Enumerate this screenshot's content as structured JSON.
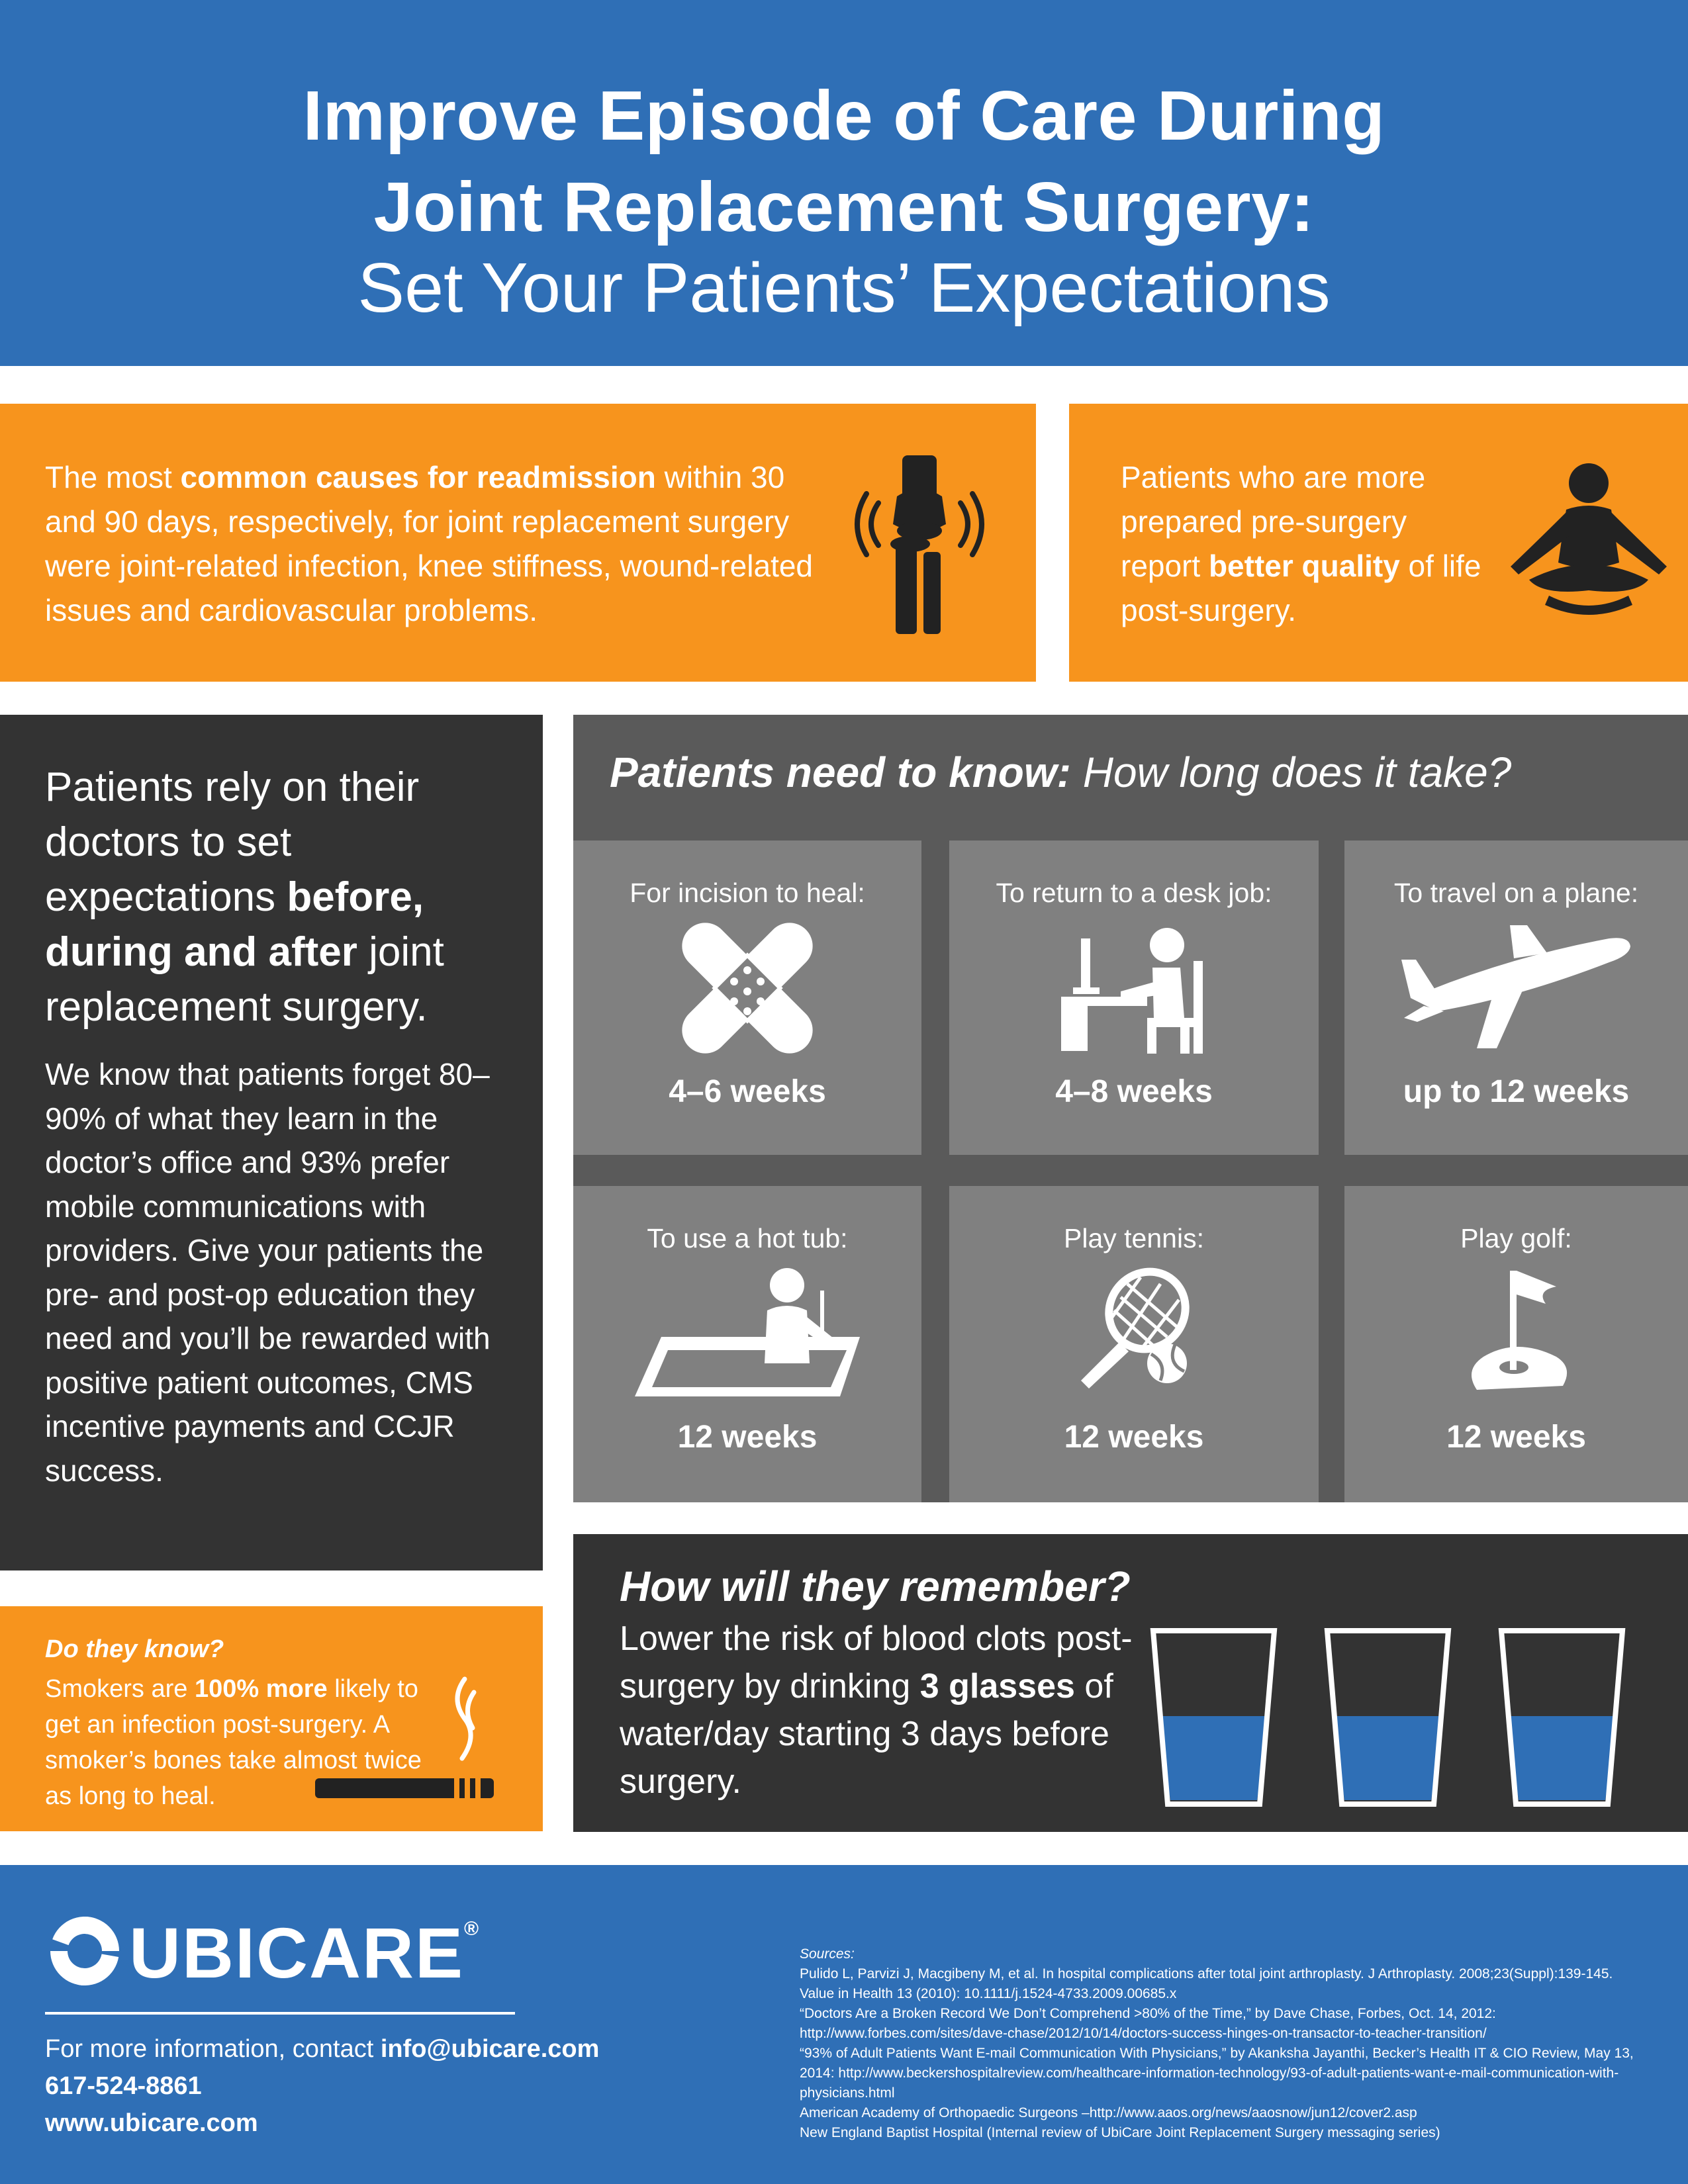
{
  "header": {
    "title_line1": "Improve Episode of Care During",
    "title_line2": "Joint Replacement Surgery:",
    "subtitle": "Set Your Patients’ Expectations"
  },
  "readmission": {
    "pre": "The most ",
    "bold": "common causes for readmission",
    "post": " within 30 and 90 days, respectively, for joint replacement surgery were joint-related infection, knee stiffness, wound-related issues and cardiovascular problems.",
    "icon": "knee-joint-icon"
  },
  "prepared": {
    "pre": "Patients who are more prepared pre-surgery report ",
    "bold": "better quality",
    "post": " of life post-surgery.",
    "icon": "meditation-icon"
  },
  "rely": {
    "lead_pre": "Patients rely on their doctors to set expectations ",
    "lead_bold": "before, during and after",
    "lead_post": " joint replacement surgery.",
    "body": "We know that patients forget 80–90% of what they learn in the doctor’s office and 93% prefer mobile communications with providers. Give your patients the pre- and post-op education they need and you’ll be rewarded with positive patient outcomes, CMS incentive payments and CCJR success."
  },
  "smokers": {
    "question": "Do they know?",
    "pre": "Smokers are ",
    "bold": "100% more",
    "post": " likely to get an infection post-surgery. A smoker’s bones take almost twice as long to heal.",
    "icon": "cigarette-icon"
  },
  "recovery": {
    "head_bold": "Patients need to know:",
    "head_rest": " How long does it take?",
    "tiles": [
      {
        "label": "For incision to heal:",
        "value": "4–6 weeks",
        "icon": "bandage-icon"
      },
      {
        "label": "To return to a desk job:",
        "value": "4–8 weeks",
        "icon": "desk-worker-icon"
      },
      {
        "label": "To travel on a plane:",
        "value": "up to 12 weeks",
        "icon": "airplane-icon"
      },
      {
        "label": "To use a hot tub:",
        "value": "12 weeks",
        "icon": "hot-tub-icon"
      },
      {
        "label": "Play tennis:",
        "value": "12 weeks",
        "icon": "tennis-icon"
      },
      {
        "label": "Play golf:",
        "value": "12 weeks",
        "icon": "golf-icon"
      }
    ]
  },
  "remember": {
    "head": "How will they remember?",
    "pre": "Lower the risk of blood clots post-surgery by drinking ",
    "bold": "3 glasses",
    "post": " of water/day starting 3 days before surgery.",
    "icon": "water-glass-icon"
  },
  "footer": {
    "brand": "UBICARE",
    "contact_pre": "For more information, contact ",
    "email": "info@ubicare.com",
    "phone": "617-524-8861",
    "website": "www.ubicare.com",
    "sources_heading": "Sources:",
    "sources": [
      "Pulido L, Parvizi J, Macgibeny M, et al. In hospital complications after total joint arthroplasty. J Arthroplasty. 2008;23(Suppl):139-145.",
      "Value in Health 13 (2010): 10.1111/j.1524-4733.2009.00685.x",
      "“Doctors Are a Broken Record We Don’t Comprehend >80% of the Time,” by Dave Chase, Forbes, Oct. 14, 2012: http://www.forbes.com/sites/dave-chase/2012/10/14/doctors-success-hinges-on-transactor-to-teacher-transition/",
      "“93% of Adult Patients Want E-mail Communication With Physicians,” by Akanksha Jayanthi, Becker’s Health IT & CIO Review, May 13, 2014: http://www.beckershospitalreview.com/healthcare-information-technology/93-of-adult-patients-want-e-mail-communication-with-physicians.html",
      "American Academy of Orthopaedic Surgeons –http://www.aaos.org/news/aaosnow/jun12/cover2.asp",
      "New England Baptist Hospital (Internal review of UbiCare Joint Replacement Surgery messaging series)"
    ]
  },
  "colors": {
    "blue": "#2f6fb6",
    "orange": "#f7941d",
    "dark": "#333333",
    "gray": "#5a5a5a",
    "tile": "#808080",
    "water": "#2f6fb6"
  }
}
